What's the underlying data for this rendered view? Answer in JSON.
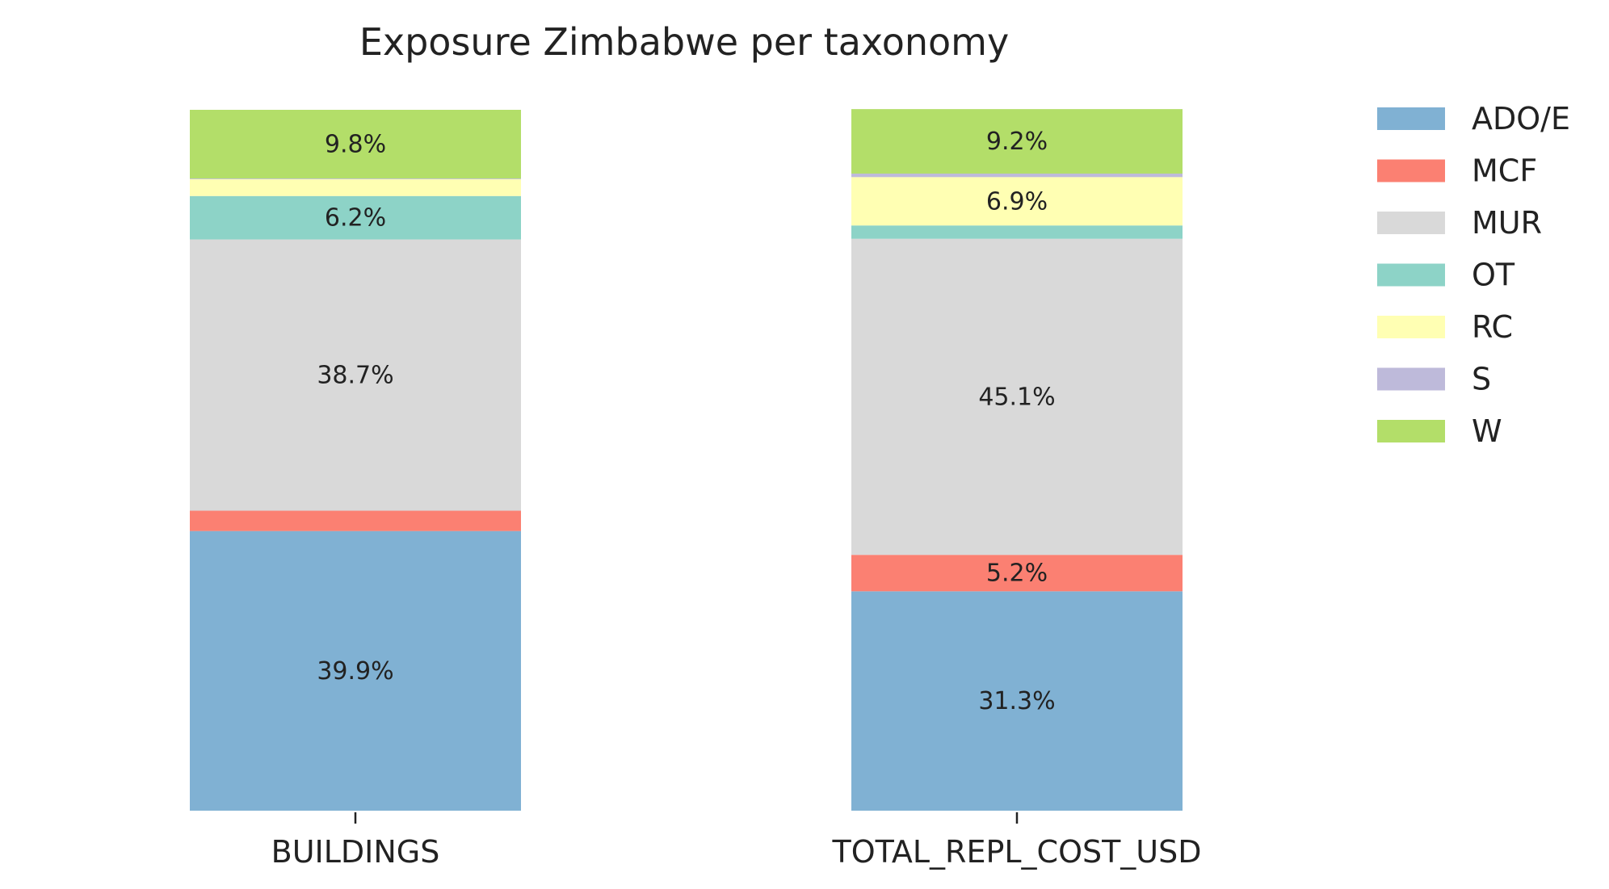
{
  "chart_data": {
    "type": "bar",
    "stacked": true,
    "normalized_to_percent": true,
    "title": "Exposure Zimbabwe per taxonomy",
    "xlabel": "",
    "ylabel": "",
    "categories": [
      "BUILDINGS",
      "TOTAL_REPL_COST_USD"
    ],
    "ylim": [
      0,
      100
    ],
    "grid": false,
    "legend_position": "right",
    "series": [
      {
        "name": "ADO/E",
        "color": "#80b1d3",
        "values": [
          39.9,
          31.3
        ],
        "labels": [
          "39.9%",
          "31.3%"
        ]
      },
      {
        "name": "MCF",
        "color": "#fb8072",
        "values": [
          2.9,
          5.2
        ],
        "labels": [
          "",
          "5.2%"
        ]
      },
      {
        "name": "MUR",
        "color": "#d9d9d9",
        "values": [
          38.7,
          45.1
        ],
        "labels": [
          "38.7%",
          "45.1%"
        ]
      },
      {
        "name": "OT",
        "color": "#8dd3c7",
        "values": [
          6.2,
          1.9
        ],
        "labels": [
          "6.2%",
          ""
        ]
      },
      {
        "name": "RC",
        "color": "#ffffb3",
        "values": [
          2.4,
          6.9
        ],
        "labels": [
          "",
          "6.9%"
        ]
      },
      {
        "name": "S",
        "color": "#bebada",
        "values": [
          0.1,
          0.5
        ],
        "labels": [
          "",
          ""
        ]
      },
      {
        "name": "W",
        "color": "#b3de69",
        "values": [
          9.8,
          9.2
        ],
        "labels": [
          "9.8%",
          "9.2%"
        ]
      }
    ]
  }
}
